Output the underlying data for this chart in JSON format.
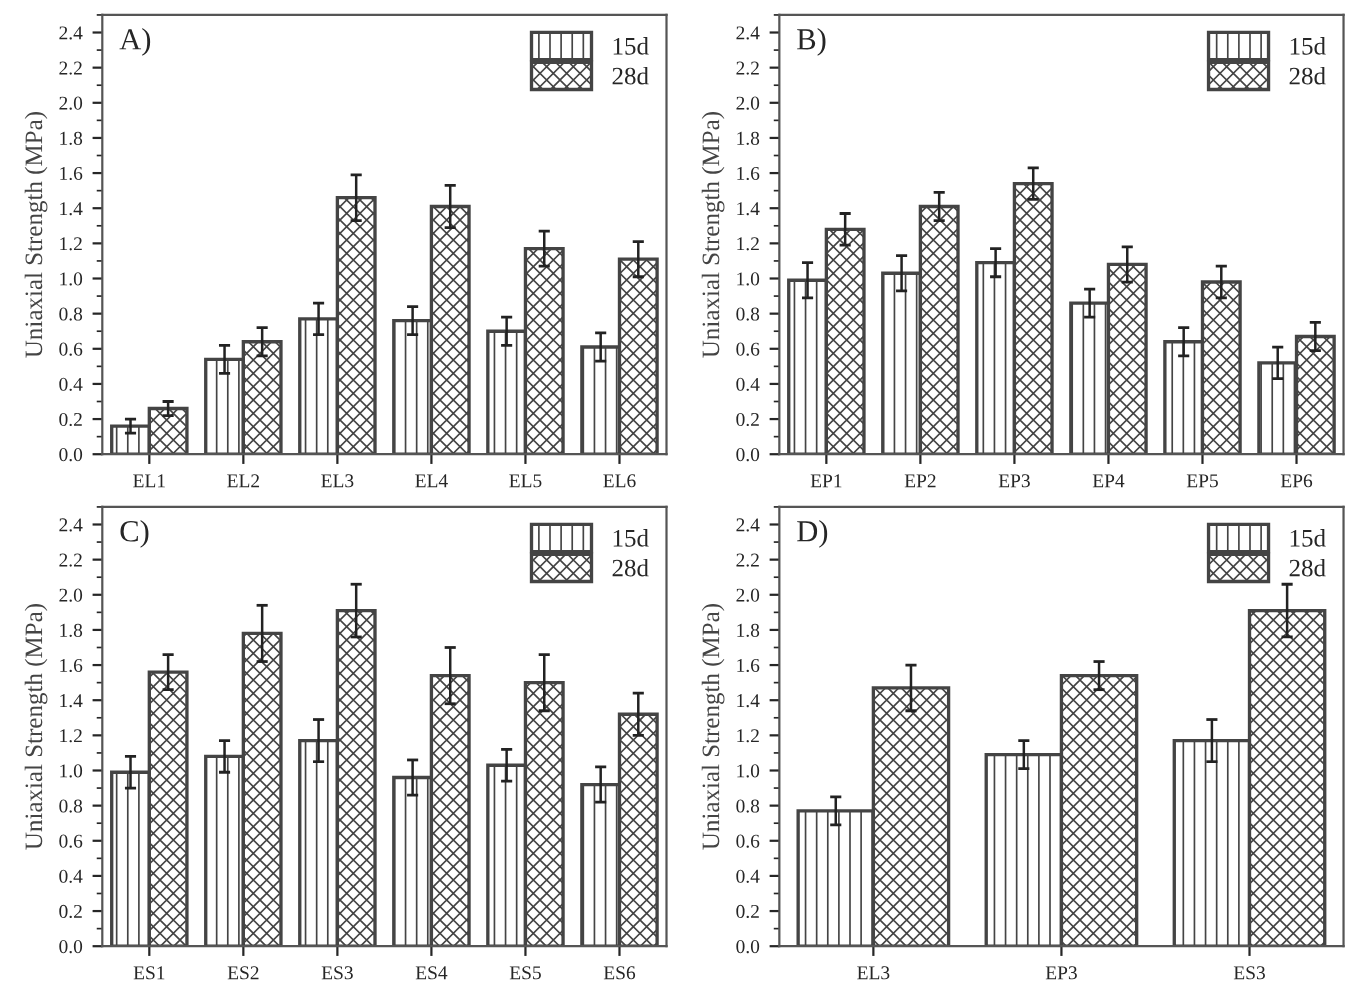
{
  "chart_data": [
    {
      "type": "bar",
      "title": "A)",
      "ylabel": "Uniaxial Strength (MPa)",
      "categories": [
        "EL1",
        "EL2",
        "EL3",
        "EL4",
        "EL5",
        "EL6"
      ],
      "ylim": [
        0,
        2.5
      ],
      "yticks": [
        {
          "value": 0,
          "label": "0.0"
        },
        {
          "value": 0.2,
          "label": "0.2"
        },
        {
          "value": 0.4,
          "label": "0.4"
        },
        {
          "value": 0.6,
          "label": "0.6"
        },
        {
          "value": 0.8,
          "label": "0.8"
        },
        {
          "value": 1.0,
          "label": "1.0"
        },
        {
          "value": 1.2,
          "label": "1.2"
        },
        {
          "value": 1.4,
          "label": "1.4"
        },
        {
          "value": 1.6,
          "label": "1.6"
        },
        {
          "value": 1.8,
          "label": "1.8"
        },
        {
          "value": 2.0,
          "label": "2.0"
        },
        {
          "value": 2.2,
          "label": "2.2"
        },
        {
          "value": 2.4,
          "label": "2.4"
        }
      ],
      "legend": "top right",
      "grid": false,
      "series": [
        {
          "name": "15d",
          "color": "#444444",
          "values": [
            0.16,
            0.54,
            0.77,
            0.76,
            0.7,
            0.61
          ],
          "errors": [
            0.04,
            0.08,
            0.09,
            0.08,
            0.08,
            0.08
          ]
        },
        {
          "name": "28d",
          "color": "#444444",
          "values": [
            0.26,
            0.64,
            1.46,
            1.41,
            1.17,
            1.11
          ],
          "errors": [
            0.04,
            0.08,
            0.13,
            0.12,
            0.1,
            0.1
          ]
        }
      ]
    },
    {
      "type": "bar",
      "title": "B)",
      "ylabel": "Uniaxial Strength (MPa)",
      "categories": [
        "EP1",
        "EP2",
        "EP3",
        "EP4",
        "EP5",
        "EP6"
      ],
      "ylim": [
        0,
        2.5
      ],
      "yticks": [
        {
          "value": 0,
          "label": "0.0"
        },
        {
          "value": 0.2,
          "label": "0.2"
        },
        {
          "value": 0.4,
          "label": "0.4"
        },
        {
          "value": 0.6,
          "label": "0.6"
        },
        {
          "value": 0.8,
          "label": "0.8"
        },
        {
          "value": 1.0,
          "label": "1.0"
        },
        {
          "value": 1.2,
          "label": "1.2"
        },
        {
          "value": 1.4,
          "label": "1.4"
        },
        {
          "value": 1.6,
          "label": "1.6"
        },
        {
          "value": 1.8,
          "label": "1.8"
        },
        {
          "value": 2.0,
          "label": "2.0"
        },
        {
          "value": 2.2,
          "label": "2.2"
        },
        {
          "value": 2.4,
          "label": "2.4"
        }
      ],
      "legend": "top right",
      "grid": false,
      "series": [
        {
          "name": "15d",
          "color": "#444444",
          "values": [
            0.99,
            1.03,
            1.09,
            0.86,
            0.64,
            0.52
          ],
          "errors": [
            0.1,
            0.1,
            0.08,
            0.08,
            0.08,
            0.09
          ]
        },
        {
          "name": "28d",
          "color": "#444444",
          "values": [
            1.28,
            1.41,
            1.54,
            1.08,
            0.98,
            0.67
          ],
          "errors": [
            0.09,
            0.08,
            0.09,
            0.1,
            0.09,
            0.08
          ]
        }
      ]
    },
    {
      "type": "bar",
      "title": "C)",
      "ylabel": "Uniaxial Strength (MPa)",
      "categories": [
        "ES1",
        "ES2",
        "ES3",
        "ES4",
        "ES5",
        "ES6"
      ],
      "ylim": [
        0,
        2.5
      ],
      "yticks": [
        {
          "value": 0,
          "label": "0.0"
        },
        {
          "value": 0.2,
          "label": "0.2"
        },
        {
          "value": 0.4,
          "label": "0.4"
        },
        {
          "value": 0.6,
          "label": "0.6"
        },
        {
          "value": 0.8,
          "label": "0.8"
        },
        {
          "value": 1.0,
          "label": "1.0"
        },
        {
          "value": 1.2,
          "label": "1.2"
        },
        {
          "value": 1.4,
          "label": "1.4"
        },
        {
          "value": 1.6,
          "label": "1.6"
        },
        {
          "value": 1.8,
          "label": "1.8"
        },
        {
          "value": 2.0,
          "label": "2.0"
        },
        {
          "value": 2.2,
          "label": "2.2"
        },
        {
          "value": 2.4,
          "label": "2.4"
        }
      ],
      "legend": "top right",
      "grid": false,
      "series": [
        {
          "name": "15d",
          "color": "#444444",
          "values": [
            0.99,
            1.08,
            1.17,
            0.96,
            1.03,
            0.92
          ],
          "errors": [
            0.09,
            0.09,
            0.12,
            0.1,
            0.09,
            0.1
          ]
        },
        {
          "name": "28d",
          "color": "#444444",
          "values": [
            1.56,
            1.78,
            1.91,
            1.54,
            1.5,
            1.32
          ],
          "errors": [
            0.1,
            0.16,
            0.15,
            0.16,
            0.16,
            0.12
          ]
        }
      ]
    },
    {
      "type": "bar",
      "title": "D)",
      "ylabel": "Uniaxial Strength (MPa)",
      "categories": [
        "EL3",
        "EP3",
        "ES3"
      ],
      "ylim": [
        0,
        2.5
      ],
      "yticks": [
        {
          "value": 0,
          "label": "0.0"
        },
        {
          "value": 0.2,
          "label": "0.2"
        },
        {
          "value": 0.4,
          "label": "0.4"
        },
        {
          "value": 0.6,
          "label": "0.6"
        },
        {
          "value": 0.8,
          "label": "0.8"
        },
        {
          "value": 1.0,
          "label": "1.0"
        },
        {
          "value": 1.2,
          "label": "1.2"
        },
        {
          "value": 1.4,
          "label": "1.4"
        },
        {
          "value": 1.6,
          "label": "1.6"
        },
        {
          "value": 1.8,
          "label": "1.8"
        },
        {
          "value": 2.0,
          "label": "2.0"
        },
        {
          "value": 2.2,
          "label": "2.2"
        },
        {
          "value": 2.4,
          "label": "2.4"
        }
      ],
      "legend": "top right",
      "grid": false,
      "series": [
        {
          "name": "15d",
          "color": "#444444",
          "values": [
            0.77,
            1.09,
            1.17
          ],
          "errors": [
            0.08,
            0.08,
            0.12
          ]
        },
        {
          "name": "28d",
          "color": "#444444",
          "values": [
            1.47,
            1.54,
            1.91
          ],
          "errors": [
            0.13,
            0.08,
            0.15
          ]
        }
      ]
    }
  ]
}
